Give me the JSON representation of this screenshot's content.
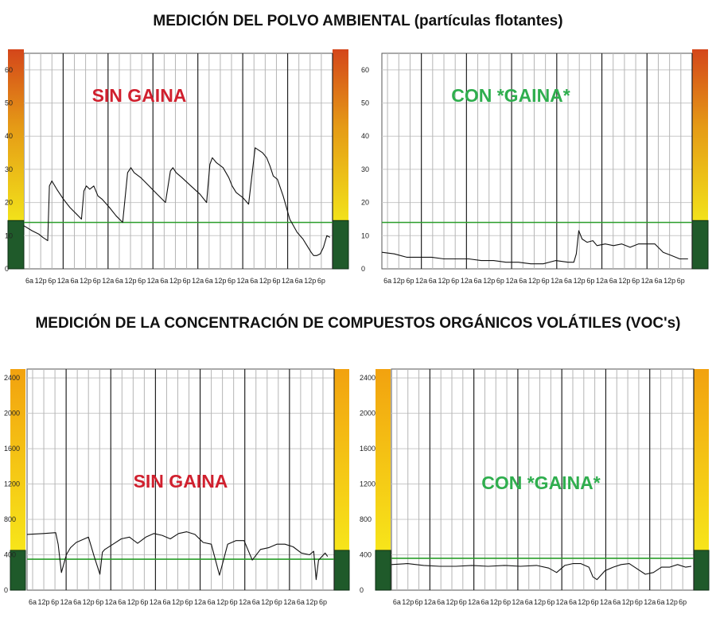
{
  "titles": {
    "dust": "MEDICIÓN DEL POLVO AMBIENTAL (partículas flotantes)",
    "voc": "MEDICIÓN DE LA CONCENTRACIÓN DE COMPUESTOS ORGÁNICOS VOLÁTILES (VOC's)"
  },
  "colors": {
    "sin_label": "#d0202e",
    "con_label": "#2fae4e",
    "threshold_line": "#2a9d2a",
    "trace": "#111111"
  },
  "chart_data": [
    {
      "id": "dust-sin",
      "type": "line",
      "label": "SIN  GAINA",
      "label_color": "sin",
      "ylim": [
        0,
        65
      ],
      "yticks": [
        "0",
        "10",
        "20",
        "30",
        "40",
        "50",
        "60"
      ],
      "x_ticks": [
        "6a",
        "12p",
        "6p",
        "12a",
        "6a",
        "12p",
        "6p",
        "12a",
        "6a",
        "12p",
        "6p",
        "12a",
        "6a",
        "12p",
        "6p",
        "12a",
        "6a",
        "12p",
        "6p",
        "12a",
        "6a",
        "12p",
        "6p",
        "12a",
        "6a",
        "12p",
        "6p"
      ],
      "threshold": 14,
      "side_bar": "dust",
      "x": [
        0,
        1,
        1.8,
        2.3,
        2.9,
        3.1,
        3.4,
        4.0,
        4.8,
        5.6,
        6.4,
        7.0,
        7.3,
        7.6,
        8.0,
        8.5,
        9.0,
        9.5,
        10.4,
        11.2,
        12.0,
        12.6,
        13.0,
        13.4,
        14.2,
        15.2,
        16.2,
        17.2,
        17.8,
        18.1,
        18.5,
        19.2,
        20.3,
        21.4,
        22.2,
        22.6,
        22.9,
        23.4,
        24.2,
        24.9,
        25.3,
        25.8,
        26.6,
        27.3,
        28.1,
        29.0,
        29.5,
        29.9,
        30.3,
        30.8,
        31.5,
        32.3,
        33.2,
        33.9,
        34.4,
        34.9,
        35.2,
        35.6,
        36.0,
        36.4,
        36.8,
        37.2
      ],
      "y": [
        13,
        11.5,
        10.5,
        9.5,
        8.5,
        25,
        26.5,
        24,
        21,
        18.5,
        16.5,
        15,
        23.5,
        25,
        24,
        25,
        22,
        21,
        18.5,
        16,
        14,
        29,
        30.5,
        29,
        27.5,
        25,
        22.5,
        20,
        29.5,
        30.5,
        29,
        27.5,
        25,
        22.5,
        20,
        31.5,
        33.5,
        32,
        30.5,
        27.5,
        25,
        23,
        21.5,
        19.5,
        36.5,
        35,
        33.5,
        31,
        28,
        27,
        22,
        15,
        11,
        9,
        7,
        5,
        4,
        4,
        4.5,
        6.5,
        10,
        9.5
      ]
    },
    {
      "id": "dust-con",
      "type": "line",
      "label": "CON  *GAINA*",
      "label_color": "con",
      "ylim": [
        0,
        65
      ],
      "yticks": [
        "0",
        "10",
        "20",
        "30",
        "40",
        "50",
        "60"
      ],
      "x_ticks": [
        "6a",
        "12p",
        "6p",
        "12a",
        "6a",
        "12p",
        "6p",
        "12a",
        "6a",
        "12p",
        "6p",
        "12a",
        "6a",
        "12p",
        "6p",
        "12a",
        "6a",
        "12p",
        "6p",
        "12a",
        "6a",
        "12p",
        "6p",
        "12a",
        "6a",
        "12p",
        "6p"
      ],
      "threshold": 14,
      "side_bar": "dust",
      "x": [
        0,
        1.5,
        3,
        4.5,
        6,
        7.5,
        9,
        10.5,
        12,
        13.5,
        15,
        16.5,
        18,
        19.5,
        21,
        22.5,
        23.2,
        23.5,
        23.8,
        24.2,
        24.8,
        25.5,
        26,
        27,
        28,
        29,
        30,
        31,
        32,
        33,
        34,
        35,
        36,
        37
      ],
      "y": [
        5,
        4.5,
        3.5,
        3.5,
        3.5,
        3,
        3,
        3,
        2.5,
        2.5,
        2,
        2,
        1.5,
        1.5,
        2.5,
        2,
        2,
        4.5,
        11.5,
        9,
        8,
        8.5,
        7,
        7.5,
        7,
        7.5,
        6.5,
        7.5,
        7.5,
        7.5,
        5,
        4,
        3,
        3
      ]
    },
    {
      "id": "voc-sin",
      "type": "line",
      "label": "SIN  GAINA",
      "label_color": "sin",
      "ylim": [
        0,
        2500
      ],
      "yticks": [
        "0",
        "400",
        "800",
        "1200",
        "1600",
        "2000",
        "2400"
      ],
      "x_ticks": [
        "6a",
        "12p",
        "6p",
        "12a",
        "6a",
        "12p",
        "6p",
        "12a",
        "6a",
        "12p",
        "6p",
        "12a",
        "6a",
        "12p",
        "6p",
        "12a",
        "6a",
        "12p",
        "6p",
        "12a",
        "6a",
        "12p",
        "6p",
        "12a",
        "6a",
        "12p",
        "6p"
      ],
      "threshold": 350,
      "side_bar": "voc",
      "x": [
        0,
        2,
        3.5,
        3.8,
        4.2,
        4.8,
        5.3,
        6.0,
        7.0,
        7.5,
        8.2,
        8.9,
        9.2,
        9.5,
        10.5,
        11.5,
        12.5,
        13.5,
        14.5,
        15.5,
        16.5,
        17.5,
        18.5,
        19.5,
        20.5,
        21.5,
        22.5,
        23.5,
        24.5,
        25.5,
        26.5,
        27.5,
        28.5,
        29.5,
        30.5,
        31.5,
        32.5,
        33.5,
        34.5,
        35.0,
        35.3,
        35.6,
        36.0,
        36.4,
        36.7
      ],
      "y": [
        630,
        640,
        650,
        520,
        200,
        400,
        480,
        540,
        580,
        600,
        380,
        180,
        430,
        460,
        520,
        580,
        600,
        530,
        600,
        640,
        620,
        580,
        640,
        660,
        630,
        540,
        520,
        170,
        520,
        560,
        560,
        340,
        460,
        480,
        520,
        520,
        490,
        420,
        400,
        440,
        120,
        340,
        380,
        420,
        380
      ]
    },
    {
      "id": "voc-con",
      "type": "line",
      "label": "CON  *GAINA*",
      "label_color": "con",
      "ylim": [
        0,
        2500
      ],
      "yticks": [
        "0",
        "400",
        "800",
        "1200",
        "1600",
        "2000",
        "2400"
      ],
      "x_ticks": [
        "6a",
        "12p",
        "6p",
        "12a",
        "6a",
        "12p",
        "6p",
        "12a",
        "6a",
        "12p",
        "6p",
        "12a",
        "6a",
        "12p",
        "6p",
        "12a",
        "6a",
        "12p",
        "6p",
        "12a",
        "6a",
        "12p",
        "6p",
        "12a",
        "6a",
        "12p",
        "6p"
      ],
      "threshold": 360,
      "side_bar": "voc",
      "x": [
        0,
        2,
        4,
        6,
        8,
        10,
        12,
        14,
        16,
        18,
        19.5,
        20.5,
        21.5,
        22.5,
        23.5,
        24.5,
        25.0,
        25.5,
        26.5,
        27.5,
        28.5,
        29.5,
        30.5,
        31.5,
        32.5,
        33.5,
        34.5,
        35.5,
        36.5,
        37.2
      ],
      "y": [
        290,
        300,
        280,
        270,
        270,
        280,
        270,
        280,
        270,
        280,
        250,
        200,
        280,
        300,
        300,
        260,
        150,
        120,
        220,
        260,
        290,
        300,
        240,
        180,
        200,
        260,
        260,
        290,
        260,
        270
      ]
    }
  ]
}
